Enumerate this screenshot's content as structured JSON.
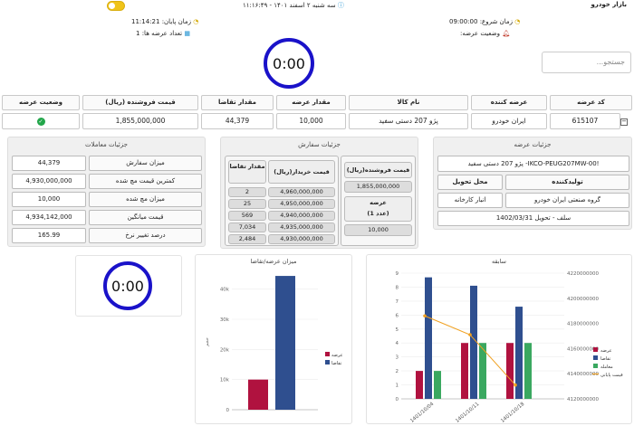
{
  "header": {
    "market_name": "بازار خودرو",
    "datetime": "سه شنبه ۲ اسفند ۱۴۰۱ - ۱۱:۱۶:۴۹",
    "end_time_label": "زمان پایان:",
    "end_time_value": "11:14:21",
    "start_time_label": "زمان شروع:",
    "start_time_value": "09:00:00",
    "offer_count_label": "تعداد عرضه ها:",
    "offer_count_value": "1",
    "offer_status_label": "وضعیت عرضه:"
  },
  "timers": {
    "main": "0:00",
    "secondary": "0:00"
  },
  "search": {
    "placeholder": "جستجو..."
  },
  "table": {
    "headers": [
      "کد عرضه",
      "عرضه کننده",
      "نام کالا",
      "مقدار عرضه",
      "مقدار تقاضا",
      "قیمت فروشنده (ریال)",
      "وضعیت عرضه"
    ],
    "row": {
      "code": "615107",
      "supplier": "ایران خودرو",
      "product": "پژو 207 دستی سفید",
      "supply_qty": "10,000",
      "demand_qty": "44,379",
      "seller_price": "1,855,000,000"
    }
  },
  "offer_details": {
    "title": "جزئیات عرضه",
    "symbol": "پژو 207 دستی سفید -IKCO-PEUG207MW-00!",
    "producer_label": "تولیدکننده",
    "delivery_label": "محل تحویل",
    "producer_value": "گروه صنعتی ایران خودرو",
    "delivery_value": "انبار کارخانه",
    "settlement": "سلف - تحویل 1402/03/31"
  },
  "order_details": {
    "title": "جزئیات سفارش",
    "seller_price_label": "قیمت فروشنده(ریال)",
    "seller_price_value": "1,855,000,000",
    "supply_label": "عرضه",
    "supply_unit": "(1 عدد)",
    "supply_value": "10,000",
    "buy_price_header": "قیمت خریدار(ریال)",
    "demand_header": "مقدار تقاضا",
    "bids": [
      {
        "price": "4,960,000,000",
        "qty": "2"
      },
      {
        "price": "4,950,000,000",
        "qty": "25"
      },
      {
        "price": "4,940,000,000",
        "qty": "569"
      },
      {
        "price": "4,935,000,000",
        "qty": "7,034"
      },
      {
        "price": "4,930,000,000",
        "qty": "2,484"
      }
    ]
  },
  "trade_details": {
    "title": "جزئیات معاملات",
    "rows": [
      {
        "label": "میزان سفارش",
        "value": "44,379"
      },
      {
        "label": "کمترین قیمت مچ شده",
        "value": "4,930,000,000"
      },
      {
        "label": "میزان مچ شده",
        "value": "10,000"
      },
      {
        "label": "قیمت میانگین",
        "value": "4,934,142,000"
      },
      {
        "label": "درصد تغییر نرخ",
        "value": "165.99"
      }
    ]
  },
  "colors": {
    "supply": "#b0123f",
    "demand": "#2f4f8f",
    "matched": "#3aa860",
    "avg_price": "#f0a020",
    "clock_ring": "#1a12c9",
    "success": "#22a64a"
  },
  "chart_data": [
    {
      "type": "bar",
      "title": "میزان عرضه/تقاضا",
      "ylabel": "حجم",
      "y_ticks": [
        "0",
        "10k",
        "20k",
        "30k",
        "40k"
      ],
      "ylim": [
        0,
        45000
      ],
      "series": [
        {
          "name": "عرضه",
          "values": [
            10000
          ]
        },
        {
          "name": "تقاضا",
          "values": [
            44379
          ]
        }
      ],
      "legend": "right"
    },
    {
      "type": "bar",
      "title": "سابقه",
      "categories": [
        "1401/10/04",
        "1401/10/11",
        "1401/10/18"
      ],
      "y_ticks": [
        "0",
        "1",
        "2",
        "3",
        "4",
        "5",
        "6",
        "7",
        "8",
        "9"
      ],
      "ylim": [
        0,
        9
      ],
      "y2_ticks": [
        "4120000000",
        "4140000000",
        "4160000000",
        "4180000000",
        "4200000000",
        "4220000000"
      ],
      "y2lim": [
        4120000000,
        4220000000
      ],
      "series": [
        {
          "name": "عرضه",
          "values": [
            2,
            4,
            4
          ]
        },
        {
          "name": "تقاضا",
          "values": [
            8.7,
            8.1,
            6.6
          ]
        },
        {
          "name": "معامله",
          "values": [
            2,
            4,
            4
          ]
        },
        {
          "name": "قیمت پایانی",
          "type": "line",
          "axis": "right",
          "values": [
            4186000000,
            4171000000,
            4131000000
          ]
        }
      ],
      "legend": "right"
    }
  ]
}
